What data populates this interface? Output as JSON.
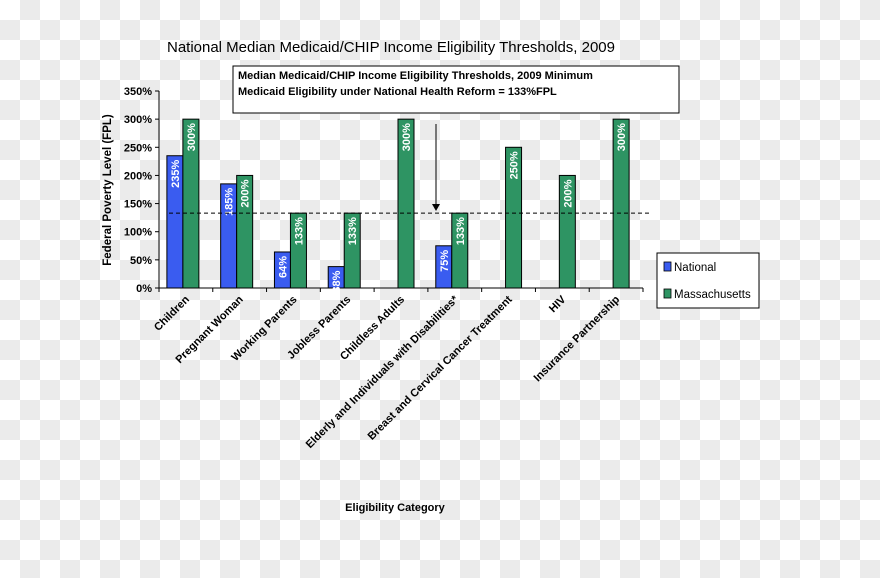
{
  "chart_data": {
    "type": "bar",
    "title": "National Median Medicaid/CHIP Income Eligibility Thresholds, 2009",
    "xlabel": "Eligibility Category",
    "ylabel": "Federal Poverty Level (FPL)",
    "ylim": [
      0,
      350
    ],
    "yticks": [
      "0%",
      "50%",
      "100%",
      "150%",
      "200%",
      "250%",
      "300%",
      "350%"
    ],
    "categories": [
      "Children",
      "Pregnant Woman",
      "Working Parents",
      "Jobless Parents",
      "Childless Adults",
      "Elderly and Individuals with Disabilities*",
      "Breast and Cervical Cancer Treatment",
      "HIV",
      "Insurance Partnership"
    ],
    "series": [
      {
        "name": "National",
        "color": "#3a5cf0",
        "values": [
          235,
          185,
          64,
          38,
          null,
          75,
          null,
          null,
          null
        ],
        "labels": [
          "235%",
          "185%",
          "64%",
          "38%",
          "",
          "75%",
          "",
          "",
          ""
        ]
      },
      {
        "name": "Massachusetts",
        "color": "#2e9463",
        "values": [
          300,
          200,
          133,
          133,
          300,
          133,
          250,
          200,
          300
        ],
        "labels": [
          "300%",
          "200%",
          "133%",
          "133%",
          "300%",
          "133%",
          "250%",
          "200%",
          "300%"
        ]
      }
    ],
    "reference_line": {
      "value": 133,
      "style": "dashed"
    },
    "annotation": [
      "Median Medicaid/CHIP Income Eligibility Thresholds, 2009 Minimum",
      "Medicaid Eligibility under National Health Reform = 133%FPL"
    ],
    "legend_position": "right",
    "grid": false
  }
}
